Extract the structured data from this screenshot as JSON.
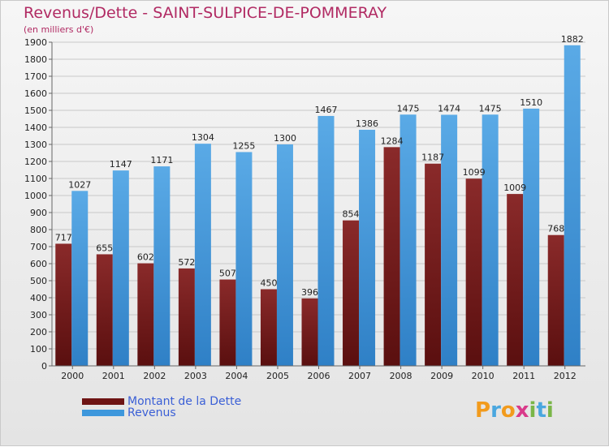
{
  "title": "Revenus/Dette - SAINT-SULPICE-DE-POMMERAY",
  "subtitle": "(en milliers d'€)",
  "logo": {
    "letters": [
      "P",
      "r",
      "o",
      "x",
      "i",
      "t",
      "i"
    ],
    "colors": [
      "#f29b1d",
      "#4aa7df",
      "#f29b1d",
      "#d93a8a",
      "#7ab648",
      "#4aa7df",
      "#7ab648"
    ]
  },
  "chart_data": {
    "type": "bar",
    "categories": [
      "2000",
      "2001",
      "2002",
      "2003",
      "2004",
      "2005",
      "2006",
      "2007",
      "2008",
      "2009",
      "2010",
      "2011",
      "2012"
    ],
    "series": [
      {
        "name": "Montant de la Dette",
        "color": "#7b1a1a",
        "values": [
          717,
          655,
          602,
          572,
          507,
          450,
          396,
          854,
          1284,
          1187,
          1099,
          1009,
          768
        ],
        "labels": [
          "717",
          "655",
          "602",
          "572",
          "507",
          "450",
          "396",
          "854",
          "1284",
          "1187",
          "1099",
          "1009",
          "768"
        ]
      },
      {
        "name": "Revenus",
        "color": "#3d97dc",
        "values": [
          1027,
          1147,
          1171,
          1304,
          1255,
          1300,
          1467,
          1386,
          1475,
          1474,
          1475,
          1510,
          1882
        ],
        "labels": [
          "1027",
          "1147",
          "1171",
          "1304",
          "1255",
          "1300",
          "1467",
          "1386",
          "1475",
          "1474",
          "1475",
          "1510",
          "1882"
        ]
      }
    ],
    "ylim": [
      0,
      1900
    ],
    "yticks": [
      0,
      100,
      200,
      300,
      400,
      500,
      600,
      700,
      800,
      900,
      1000,
      1100,
      1200,
      1300,
      1400,
      1500,
      1600,
      1700,
      1800,
      1900
    ],
    "grid": true,
    "legend": "bottom-left"
  }
}
